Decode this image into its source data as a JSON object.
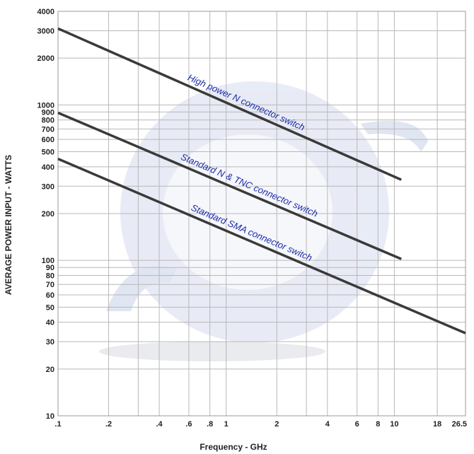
{
  "chart_data": {
    "type": "line",
    "title": "",
    "xlabel": "Frequency - GHz",
    "ylabel": "AVERAGE POWER INPUT - WATTS",
    "x_scale": "log",
    "y_scale": "log",
    "xlim": [
      0.1,
      26.5
    ],
    "ylim": [
      10,
      4000
    ],
    "grid": true,
    "x_ticks": [
      0.1,
      0.2,
      0.4,
      0.6,
      0.8,
      1,
      2,
      4,
      6,
      8,
      10,
      18,
      26.5
    ],
    "x_tick_labels": [
      ".1",
      ".2",
      ".4",
      ".6",
      ".8",
      "1",
      "2",
      "4",
      "6",
      "8",
      "10",
      "18",
      "26.5"
    ],
    "y_ticks": [
      10,
      20,
      30,
      40,
      50,
      60,
      70,
      80,
      90,
      100,
      200,
      300,
      400,
      500,
      600,
      700,
      800,
      900,
      1000,
      2000,
      3000,
      4000
    ],
    "y_tick_labels": [
      "10",
      "20",
      "30",
      "40",
      "50",
      "60",
      "70",
      "80",
      "90",
      "100",
      "200",
      "300",
      "400",
      "500",
      "600",
      "700",
      "800",
      "900",
      "1000",
      "2000",
      "3000",
      "4000"
    ],
    "series": [
      {
        "label": "High power N connector switch",
        "x": [
          0.1,
          11
        ],
        "y": [
          3100,
          330
        ]
      },
      {
        "label": "Standard N & TNC connector switch",
        "x": [
          0.1,
          11
        ],
        "y": [
          890,
          102
        ]
      },
      {
        "label": "Standard SMA connector switch",
        "x": [
          0.1,
          26.5
        ],
        "y": [
          450,
          34
        ]
      }
    ],
    "colors": {
      "line": "#3a3a3a",
      "grid": "#b8b8b8",
      "label": "#1c2aa8",
      "background_swirl": "#cfd6ea"
    }
  }
}
